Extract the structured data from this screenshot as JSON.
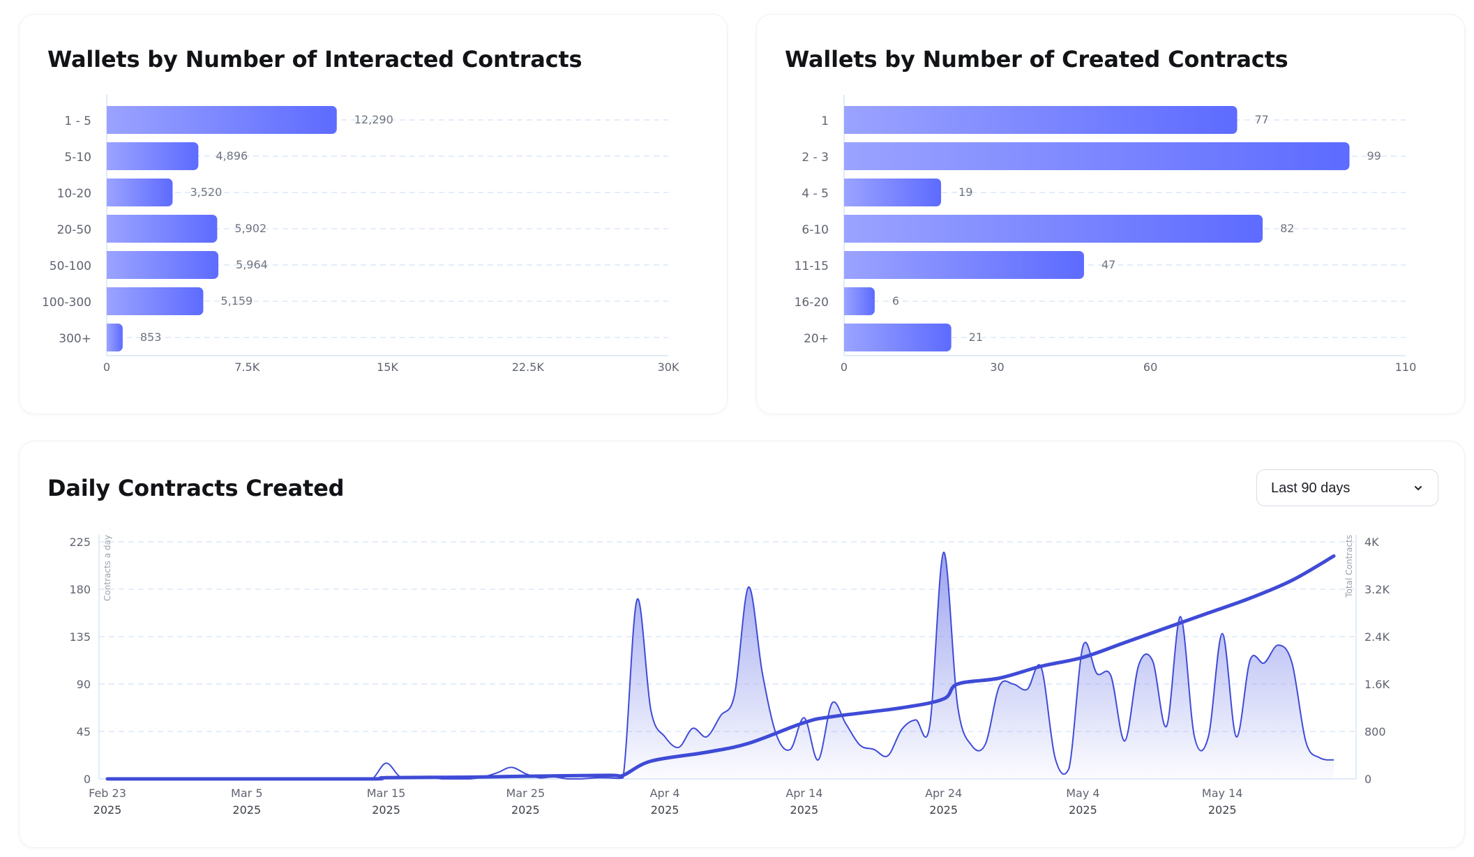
{
  "colors": {
    "bar_start": "#9ba3ff",
    "bar_end": "#5d6bff",
    "line": "#3f4bd6",
    "area_top": "#8b94ec",
    "grid": "#dbe7f7",
    "axis": "#d5e5f5",
    "tick_text": "#5f6470",
    "value_text": "#6f7480"
  },
  "cards": {
    "interacted": {
      "title": "Wallets by Number of Interacted Contracts"
    },
    "created": {
      "title": "Wallets by Number of Created Contracts"
    },
    "daily": {
      "title": "Daily Contracts Created"
    }
  },
  "range_select": {
    "selected": "Last 90 days",
    "icon": "chevron-down-icon"
  },
  "chart_data": [
    {
      "id": "interacted",
      "type": "bar",
      "orientation": "horizontal",
      "title": "Wallets by Number of Interacted Contracts",
      "categories": [
        "1 - 5",
        "5-10",
        "10-20",
        "20-50",
        "50-100",
        "100-300",
        "300+"
      ],
      "values": [
        12290,
        4896,
        3520,
        5902,
        5964,
        5159,
        853
      ],
      "value_labels": [
        "12,290",
        "4,896",
        "3,520",
        "5,902",
        "5,964",
        "5,159",
        "853"
      ],
      "xlim": [
        0,
        30000
      ],
      "x_ticks": [
        0,
        7500,
        15000,
        22500,
        30000
      ],
      "x_tick_labels": [
        "0",
        "7.5K",
        "15K",
        "22.5K",
        "30K"
      ],
      "grid": true
    },
    {
      "id": "created",
      "type": "bar",
      "orientation": "horizontal",
      "title": "Wallets by Number of Created Contracts",
      "categories": [
        "1",
        "2 - 3",
        "4 - 5",
        "6-10",
        "11-15",
        "16-20",
        "20+"
      ],
      "values": [
        77,
        99,
        19,
        82,
        47,
        6,
        21
      ],
      "value_labels": [
        "77",
        "99",
        "19",
        "82",
        "47",
        "6",
        "21"
      ],
      "xlim": [
        0,
        110
      ],
      "x_ticks": [
        0,
        30,
        60,
        110
      ],
      "x_tick_labels": [
        "0",
        "30",
        "60",
        "110"
      ],
      "grid": true
    },
    {
      "id": "daily",
      "type": "area",
      "title": "Daily Contracts Created",
      "left_axis_label": "Contracts a day",
      "right_axis_label": "Total Contracts",
      "y_left_lim": [
        0,
        225
      ],
      "y_left_ticks": [
        0,
        45,
        90,
        135,
        180,
        225
      ],
      "y_left_tick_labels": [
        "0",
        "45",
        "90",
        "135",
        "180",
        "225"
      ],
      "y_right_lim": [
        0,
        4000
      ],
      "y_right_ticks": [
        0,
        800,
        1600,
        2400,
        3200,
        4000
      ],
      "y_right_tick_labels": [
        "0",
        "800",
        "1.6K",
        "2.4K",
        "3.2K",
        "4K"
      ],
      "x_lim": [
        "2025-02-23",
        "2025-05-23"
      ],
      "x_ticks": [
        {
          "date": "2025-02-23",
          "label": "Feb 23",
          "year": "2025"
        },
        {
          "date": "2025-03-05",
          "label": "Mar 5",
          "year": "2025"
        },
        {
          "date": "2025-03-15",
          "label": "Mar 15",
          "year": "2025"
        },
        {
          "date": "2025-03-25",
          "label": "Mar 25",
          "year": "2025"
        },
        {
          "date": "2025-04-04",
          "label": "Apr 4",
          "year": "2025"
        },
        {
          "date": "2025-04-14",
          "label": "Apr 14",
          "year": "2025"
        },
        {
          "date": "2025-04-24",
          "label": "Apr 24",
          "year": "2025"
        },
        {
          "date": "2025-05-04",
          "label": "May 4",
          "year": "2025"
        },
        {
          "date": "2025-05-14",
          "label": "May 14",
          "year": "2025"
        }
      ],
      "grid": true,
      "series": [
        {
          "axis": "left",
          "style": "area",
          "points": [
            [
              "2025-02-23",
              0
            ],
            [
              "2025-02-24",
              0
            ],
            [
              "2025-02-25",
              0
            ],
            [
              "2025-02-26",
              0
            ],
            [
              "2025-02-27",
              0
            ],
            [
              "2025-02-28",
              0
            ],
            [
              "2025-03-01",
              0
            ],
            [
              "2025-03-02",
              0
            ],
            [
              "2025-03-03",
              0
            ],
            [
              "2025-03-04",
              0
            ],
            [
              "2025-03-05",
              0
            ],
            [
              "2025-03-06",
              0
            ],
            [
              "2025-03-07",
              0
            ],
            [
              "2025-03-08",
              0
            ],
            [
              "2025-03-09",
              0
            ],
            [
              "2025-03-10",
              0
            ],
            [
              "2025-03-11",
              0
            ],
            [
              "2025-03-12",
              0
            ],
            [
              "2025-03-13",
              0
            ],
            [
              "2025-03-14",
              0
            ],
            [
              "2025-03-15",
              15
            ],
            [
              "2025-03-16",
              2
            ],
            [
              "2025-03-17",
              1
            ],
            [
              "2025-03-18",
              2
            ],
            [
              "2025-03-19",
              0
            ],
            [
              "2025-03-20",
              0
            ],
            [
              "2025-03-21",
              0
            ],
            [
              "2025-03-22",
              2
            ],
            [
              "2025-03-23",
              6
            ],
            [
              "2025-03-24",
              11
            ],
            [
              "2025-03-25",
              5
            ],
            [
              "2025-03-26",
              1
            ],
            [
              "2025-03-27",
              2
            ],
            [
              "2025-03-28",
              0
            ],
            [
              "2025-03-29",
              0
            ],
            [
              "2025-03-30",
              1
            ],
            [
              "2025-03-31",
              1
            ],
            [
              "2025-04-01",
              1
            ],
            [
              "2025-04-02",
              170
            ],
            [
              "2025-04-03",
              65
            ],
            [
              "2025-04-04",
              40
            ],
            [
              "2025-04-05",
              30
            ],
            [
              "2025-04-06",
              48
            ],
            [
              "2025-04-07",
              40
            ],
            [
              "2025-04-08",
              60
            ],
            [
              "2025-04-09",
              80
            ],
            [
              "2025-04-10",
              182
            ],
            [
              "2025-04-11",
              100
            ],
            [
              "2025-04-12",
              42
            ],
            [
              "2025-04-13",
              28
            ],
            [
              "2025-04-14",
              58
            ],
            [
              "2025-04-15",
              18
            ],
            [
              "2025-04-16",
              72
            ],
            [
              "2025-04-17",
              52
            ],
            [
              "2025-04-18",
              32
            ],
            [
              "2025-04-19",
              28
            ],
            [
              "2025-04-20",
              22
            ],
            [
              "2025-04-21",
              47
            ],
            [
              "2025-04-22",
              56
            ],
            [
              "2025-04-23",
              50
            ],
            [
              "2025-04-24",
              215
            ],
            [
              "2025-04-25",
              70
            ],
            [
              "2025-04-26",
              32
            ],
            [
              "2025-04-27",
              33
            ],
            [
              "2025-04-28",
              88
            ],
            [
              "2025-04-29",
              90
            ],
            [
              "2025-04-30",
              85
            ],
            [
              "2025-05-01",
              106
            ],
            [
              "2025-05-02",
              20
            ],
            [
              "2025-05-03",
              10
            ],
            [
              "2025-05-04",
              126
            ],
            [
              "2025-05-05",
              100
            ],
            [
              "2025-05-06",
              98
            ],
            [
              "2025-05-07",
              36
            ],
            [
              "2025-05-08",
              108
            ],
            [
              "2025-05-09",
              112
            ],
            [
              "2025-05-10",
              50
            ],
            [
              "2025-05-11",
              154
            ],
            [
              "2025-05-12",
              40
            ],
            [
              "2025-05-13",
              40
            ],
            [
              "2025-05-14",
              138
            ],
            [
              "2025-05-15",
              40
            ],
            [
              "2025-05-16",
              113
            ],
            [
              "2025-05-17",
              110
            ],
            [
              "2025-05-18",
              127
            ],
            [
              "2025-05-19",
              110
            ],
            [
              "2025-05-20",
              35
            ],
            [
              "2025-05-21",
              20
            ],
            [
              "2025-05-22",
              18
            ]
          ]
        },
        {
          "axis": "right",
          "style": "line",
          "points": [
            [
              "2025-02-23",
              0
            ],
            [
              "2025-03-05",
              0
            ],
            [
              "2025-03-14",
              0
            ],
            [
              "2025-03-15",
              20
            ],
            [
              "2025-03-21",
              30
            ],
            [
              "2025-03-25",
              45
            ],
            [
              "2025-03-31",
              60
            ],
            [
              "2025-04-01",
              60
            ],
            [
              "2025-04-03",
              300
            ],
            [
              "2025-04-07",
              450
            ],
            [
              "2025-04-10",
              600
            ],
            [
              "2025-04-14",
              950
            ],
            [
              "2025-04-16",
              1050
            ],
            [
              "2025-04-21",
              1200
            ],
            [
              "2025-04-24",
              1350
            ],
            [
              "2025-04-25",
              1600
            ],
            [
              "2025-04-28",
              1700
            ],
            [
              "2025-05-01",
              1900
            ],
            [
              "2025-05-04",
              2050
            ],
            [
              "2025-05-07",
              2300
            ],
            [
              "2025-05-10",
              2550
            ],
            [
              "2025-05-13",
              2800
            ],
            [
              "2025-05-16",
              3050
            ],
            [
              "2025-05-19",
              3350
            ],
            [
              "2025-05-22",
              3760
            ]
          ]
        }
      ]
    }
  ]
}
